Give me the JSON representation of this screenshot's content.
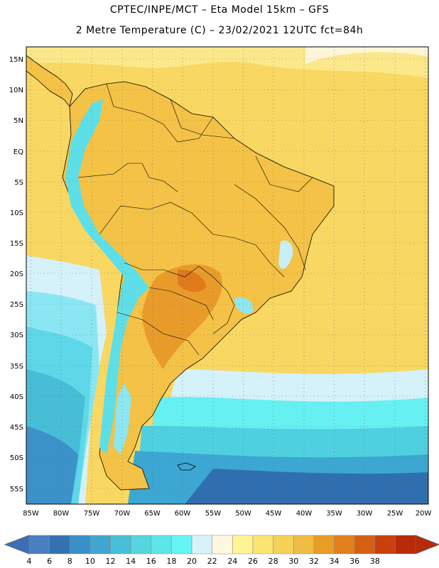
{
  "title_line1": "CPTEC/INPE/MCT –  Eta Model 15km – GFS",
  "title_line2": "2 Metre Temperature (C) – 23/02/2021 12UTC fct=84h",
  "map": {
    "lat_labels": [
      "15N",
      "10N",
      "5N",
      "EQ",
      "5S",
      "10S",
      "15S",
      "20S",
      "25S",
      "30S",
      "35S",
      "40S",
      "45S",
      "50S",
      "55S"
    ],
    "lon_labels": [
      "85W",
      "80W",
      "75W",
      "70W",
      "65W",
      "60W",
      "55W",
      "50W",
      "45W",
      "40W",
      "35W",
      "30W",
      "25W",
      "20W"
    ],
    "ocean_color": "#f7d35e",
    "land_color": "#f3c044"
  },
  "colorbar": {
    "labels": [
      "4",
      "6",
      "8",
      "10",
      "12",
      "14",
      "16",
      "18",
      "20",
      "22",
      "24",
      "26",
      "28",
      "30",
      "32",
      "34",
      "36",
      "38"
    ],
    "colors": [
      "#4a7fc0",
      "#3272b0",
      "#3a8fc6",
      "#40a6d0",
      "#48bfd8",
      "#55d5e0",
      "#5ee5e8",
      "#66f5f5",
      "#d8f2fa",
      "#fff8e0",
      "#fff596",
      "#fce470",
      "#f5d158",
      "#efbc44",
      "#e89e24",
      "#e2801c",
      "#d66012",
      "#c9400c",
      "#b82a08"
    ],
    "left_arrow_color": "#3a6fb8",
    "right_arrow_color": "#b82a08"
  }
}
